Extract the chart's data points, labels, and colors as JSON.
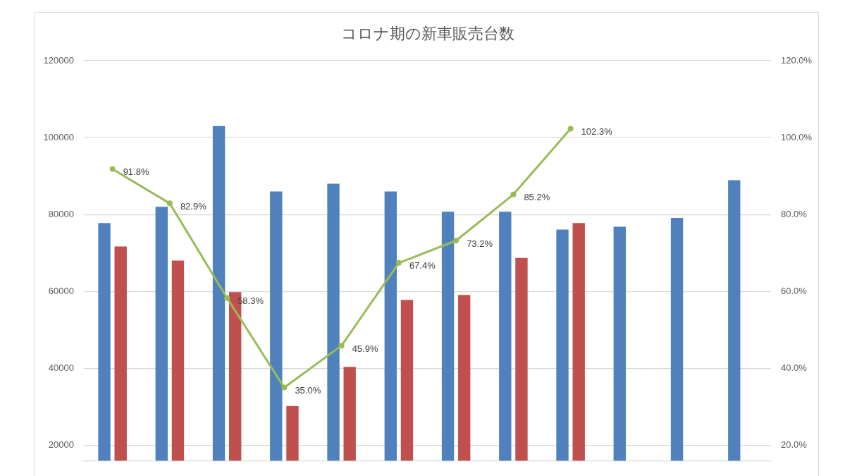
{
  "chart_data": {
    "type": "bar",
    "title": "コロナ期の新車販売台数",
    "categories": [
      null,
      null,
      null,
      null,
      null,
      null,
      null,
      null,
      null,
      null,
      null,
      null
    ],
    "series": [
      {
        "color": "#4f81bd",
        "values": [
          77800,
          82000,
          103000,
          86000,
          88000,
          86000,
          80700,
          80700,
          76100,
          76800,
          79100,
          88900
        ]
      },
      {
        "color": "#c0504d",
        "values": [
          71700,
          68000,
          59800,
          30200,
          40400,
          57800,
          59100,
          68700,
          77800,
          null,
          null,
          null
        ]
      },
      {
        "type": "line",
        "axis": "y2",
        "color": "#9bbb59",
        "marker": "circle",
        "values": [
          91.8,
          82.9,
          58.3,
          35.0,
          45.9,
          67.4,
          73.2,
          85.2,
          102.3,
          null,
          null,
          null
        ],
        "value_labels": [
          "91.8%",
          "82.9%",
          "58.3%",
          "35.0%",
          "45.9%",
          "67.4%",
          "73.2%",
          "85.2%",
          "102.3%",
          null,
          null,
          null
        ]
      }
    ],
    "ylim": [
      16000,
      120000
    ],
    "yticks": [
      20000,
      40000,
      60000,
      80000,
      100000,
      120000
    ],
    "y2lim": [
      16,
      120
    ],
    "y2ticks": [
      {
        "value": 20,
        "label": "20.0%"
      },
      {
        "value": 40,
        "label": "40.0%"
      },
      {
        "value": 60,
        "label": "60.0%"
      },
      {
        "value": 80,
        "label": "80.0%"
      },
      {
        "value": 100,
        "label": "100.0%"
      },
      {
        "value": 120,
        "label": "120.0%"
      }
    ],
    "grid": "y",
    "legend": false
  }
}
